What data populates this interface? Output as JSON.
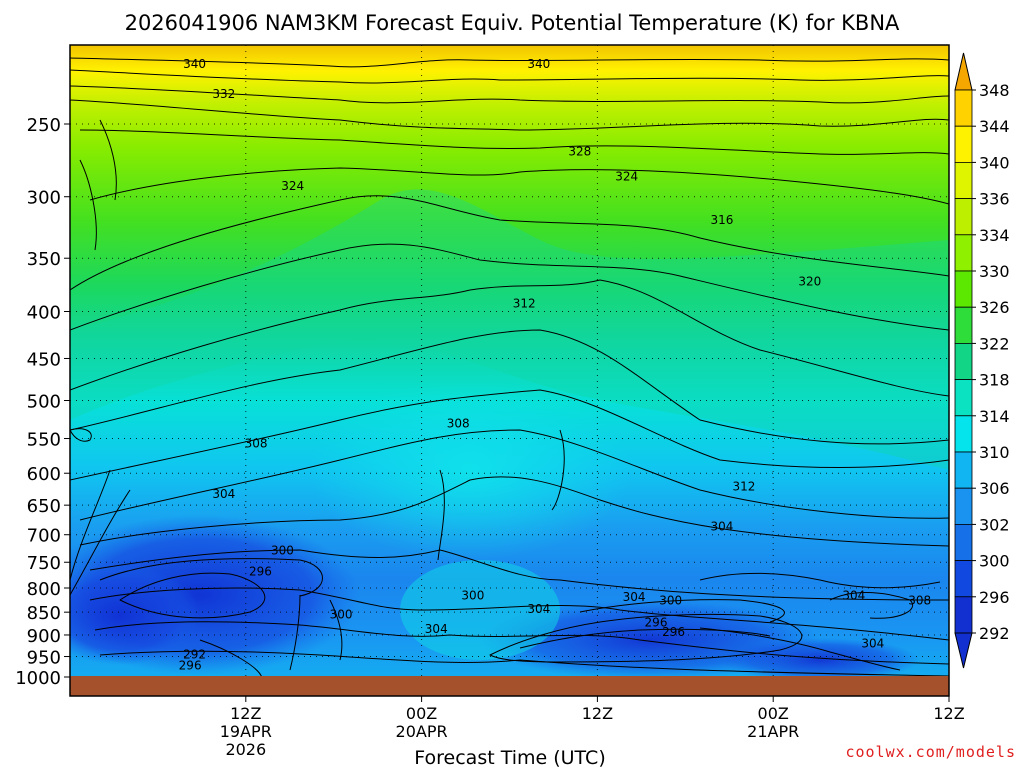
{
  "chart_data": {
    "type": "heatmap",
    "title": "2026041906 NAM3KM Forecast Equiv. Potential Temperature (K) for KBNA",
    "xlabel": "Forecast Time (UTC)",
    "ylabel": "",
    "credit": "coolwx.com/models",
    "x_range_hours": [
      -6,
      54
    ],
    "x_ticks": [
      {
        "hour": 6,
        "labels": [
          "12Z",
          "19APR",
          "2026"
        ]
      },
      {
        "hour": 18,
        "labels": [
          "00Z",
          "20APR"
        ]
      },
      {
        "hour": 30,
        "labels": [
          "12Z"
        ]
      },
      {
        "hour": 42,
        "labels": [
          "00Z",
          "21APR"
        ]
      },
      {
        "hour": 54,
        "labels": [
          "12Z"
        ]
      }
    ],
    "pressure_range": [
      200,
      1000
    ],
    "y_ticks": [
      250,
      300,
      350,
      400,
      450,
      500,
      550,
      600,
      650,
      700,
      750,
      800,
      850,
      900,
      950,
      1000
    ],
    "colorbar": {
      "labels": [
        348,
        344,
        340,
        336,
        334,
        330,
        326,
        322,
        318,
        314,
        310,
        306,
        302,
        300,
        296,
        292
      ],
      "colors": [
        "#f5a700",
        "#ffd200",
        "#fff200",
        "#dff500",
        "#bdf000",
        "#8ff000",
        "#5ce800",
        "#2edc3a",
        "#12d586",
        "#0ae2c2",
        "#05e3ec",
        "#10b5f2",
        "#1a92f0",
        "#1670e8",
        "#1048e0",
        "#1230d0"
      ]
    },
    "contour_labels": [
      {
        "text": "340",
        "hour": 2.5,
        "p": 215
      },
      {
        "text": "340",
        "hour": 26,
        "p": 215
      },
      {
        "text": "332",
        "hour": 4.5,
        "p": 232
      },
      {
        "text": "328",
        "hour": 28.8,
        "p": 268
      },
      {
        "text": "324",
        "hour": 32,
        "p": 285
      },
      {
        "text": "324",
        "hour": 9.2,
        "p": 292
      },
      {
        "text": "316",
        "hour": 38.5,
        "p": 318
      },
      {
        "text": "320",
        "hour": 44.5,
        "p": 371
      },
      {
        "text": "312",
        "hour": 25,
        "p": 392
      },
      {
        "text": "308",
        "hour": 20.5,
        "p": 530
      },
      {
        "text": "308",
        "hour": 6.7,
        "p": 557
      },
      {
        "text": "312",
        "hour": 40,
        "p": 620
      },
      {
        "text": "304",
        "hour": 4.5,
        "p": 632
      },
      {
        "text": "304",
        "hour": 38.5,
        "p": 686
      },
      {
        "text": "300",
        "hour": 8.5,
        "p": 728
      },
      {
        "text": "296",
        "hour": 7,
        "p": 768
      },
      {
        "text": "304",
        "hour": 32.5,
        "p": 818
      },
      {
        "text": "300",
        "hour": 21.5,
        "p": 815
      },
      {
        "text": "300",
        "hour": 35,
        "p": 825
      },
      {
        "text": "304",
        "hour": 47.5,
        "p": 815
      },
      {
        "text": "308",
        "hour": 52,
        "p": 825
      },
      {
        "text": "304",
        "hour": 26,
        "p": 843
      },
      {
        "text": "300",
        "hour": 12.5,
        "p": 855
      },
      {
        "text": "296",
        "hour": 34,
        "p": 872
      },
      {
        "text": "296",
        "hour": 35.2,
        "p": 893
      },
      {
        "text": "304",
        "hour": 19,
        "p": 887
      },
      {
        "text": "304",
        "hour": 48.8,
        "p": 920
      },
      {
        "text": "292",
        "hour": 2.5,
        "p": 945
      },
      {
        "text": "296",
        "hour": 2.2,
        "p": 972
      }
    ]
  }
}
